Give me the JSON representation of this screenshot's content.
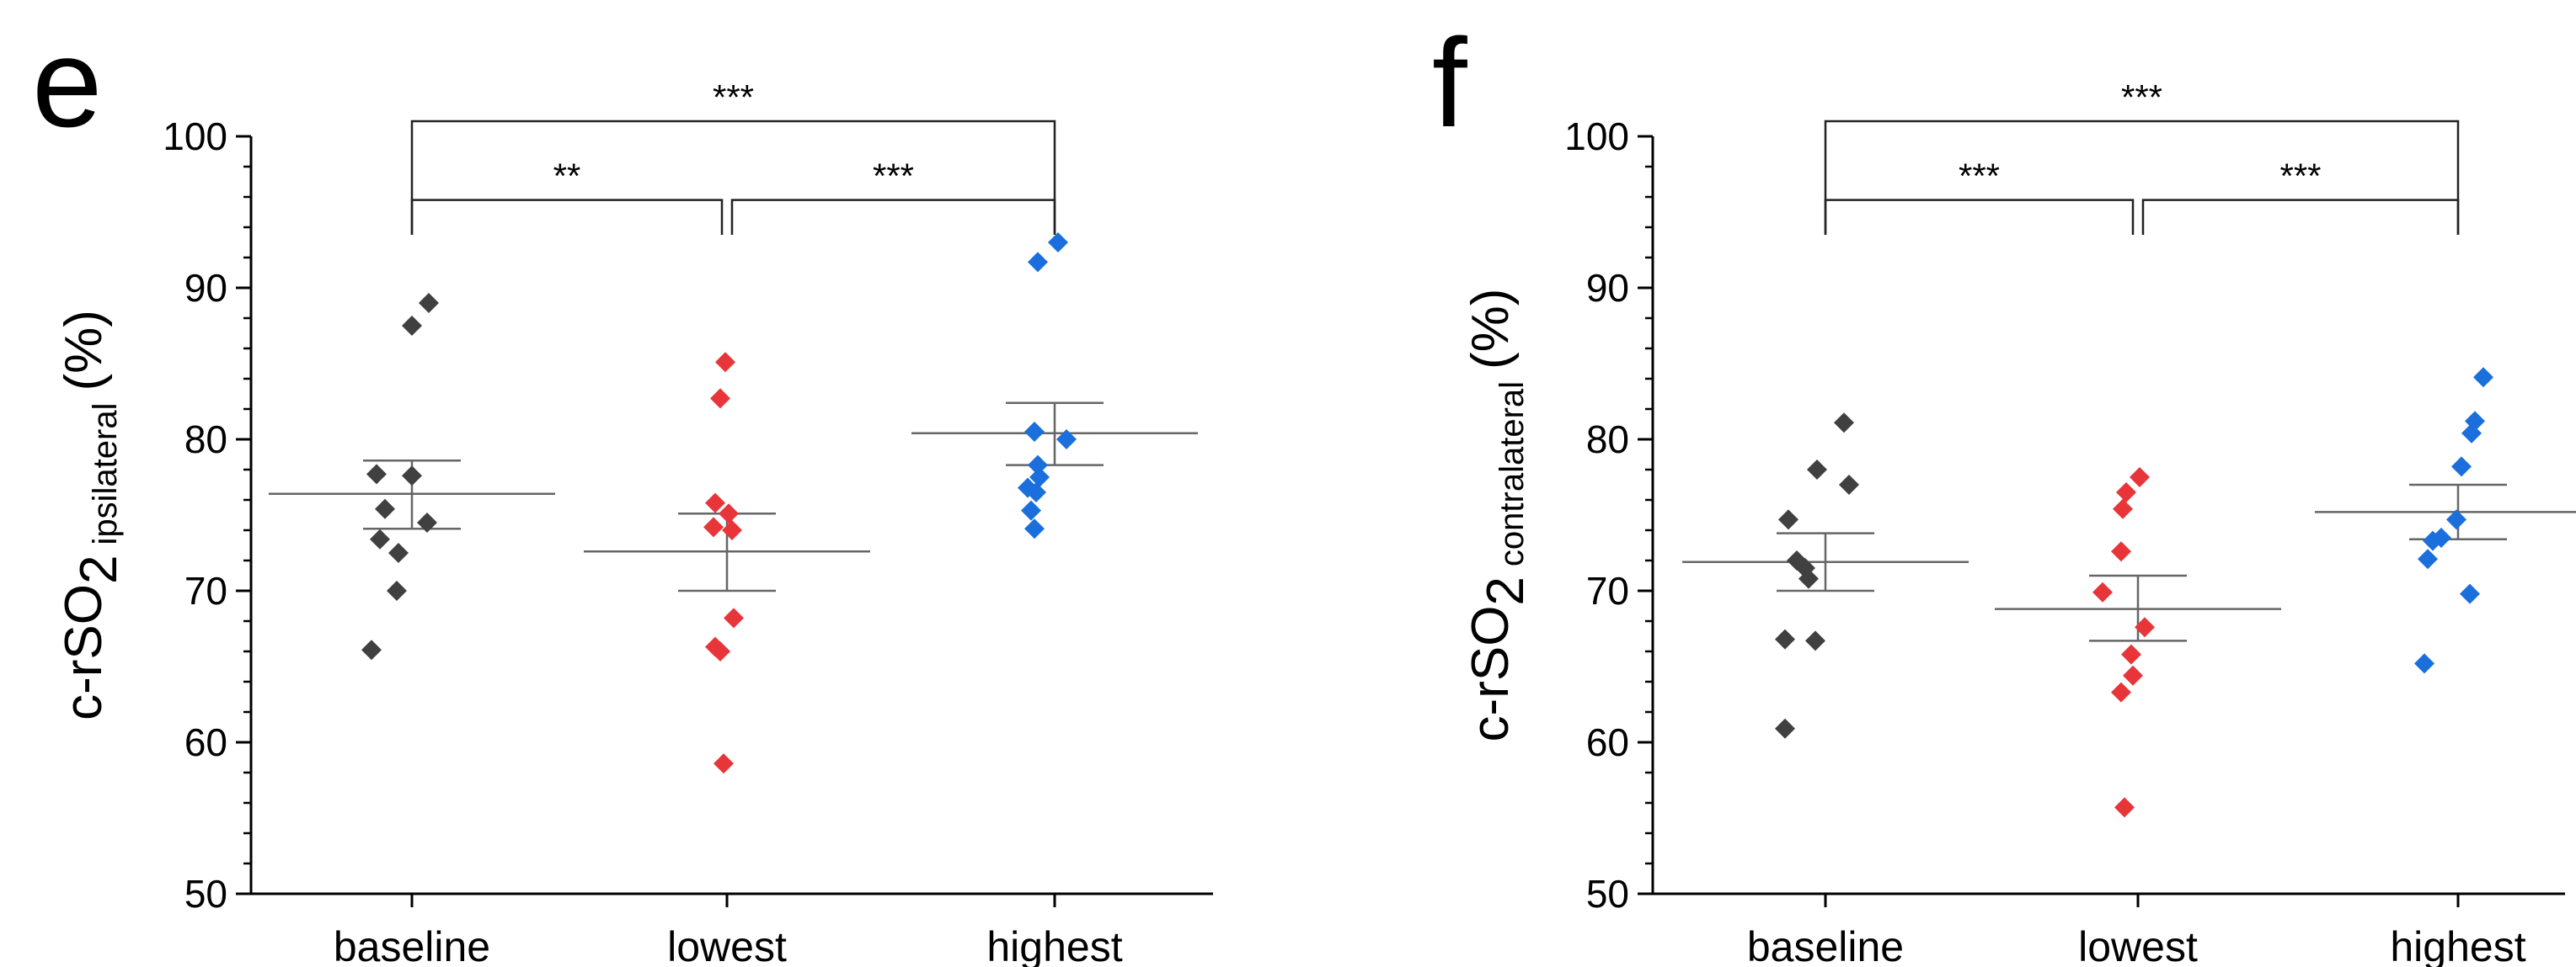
{
  "chart_data": [
    {
      "type": "scatter",
      "panel_label": "e",
      "categories": [
        "baseline",
        "lowest",
        "highest"
      ],
      "ylabel": {
        "main": "c-rSO",
        "subscript": "2",
        "qualifier": "ipsilateral",
        "unit": "(%)"
      },
      "ylim": [
        50,
        100
      ],
      "yticks": [
        50,
        60,
        70,
        80,
        90,
        100
      ],
      "series": [
        {
          "name": "baseline",
          "color": "#404040",
          "values": [
            89.0,
            87.5,
            77.7,
            77.6,
            75.4,
            74.5,
            73.4,
            72.5,
            70.0,
            66.1
          ],
          "mean": 76.4,
          "sem_low": 74.1,
          "sem_high": 78.6
        },
        {
          "name": "lowest",
          "color": "#e8353a",
          "values": [
            85.1,
            82.7,
            75.8,
            75.1,
            74.2,
            74.0,
            68.2,
            66.3,
            66.0,
            58.6
          ],
          "mean": 72.6,
          "sem_low": 70.0,
          "sem_high": 75.1
        },
        {
          "name": "highest",
          "color": "#1a6fdc",
          "values": [
            93.0,
            91.7,
            80.5,
            80.0,
            78.3,
            77.5,
            76.8,
            76.5,
            75.3,
            74.1
          ],
          "mean": 80.4,
          "sem_low": 78.3,
          "sem_high": 82.4
        }
      ],
      "significance": [
        {
          "from": "baseline",
          "to": "lowest",
          "label": "**"
        },
        {
          "from": "lowest",
          "to": "highest",
          "label": "***"
        },
        {
          "from": "baseline",
          "to": "highest",
          "label": "***"
        }
      ]
    },
    {
      "type": "scatter",
      "panel_label": "f",
      "categories": [
        "baseline",
        "lowest",
        "highest"
      ],
      "ylabel": {
        "main": "c-rSO",
        "subscript": "2",
        "qualifier": "contralateral",
        "unit": "(%)"
      },
      "ylim": [
        50,
        100
      ],
      "yticks": [
        50,
        60,
        70,
        80,
        90,
        100
      ],
      "series": [
        {
          "name": "baseline",
          "color": "#404040",
          "values": [
            81.1,
            78.0,
            77.0,
            74.7,
            72.0,
            71.5,
            70.8,
            66.8,
            66.7,
            60.9
          ],
          "mean": 71.9,
          "sem_low": 70.0,
          "sem_high": 73.8
        },
        {
          "name": "lowest",
          "color": "#e8353a",
          "values": [
            77.5,
            76.5,
            75.4,
            72.6,
            69.9,
            67.6,
            65.8,
            64.4,
            63.3,
            55.7
          ],
          "mean": 68.8,
          "sem_low": 66.7,
          "sem_high": 71.0
        },
        {
          "name": "highest",
          "color": "#1a6fdc",
          "values": [
            84.1,
            81.2,
            80.4,
            78.2,
            74.7,
            73.5,
            73.3,
            72.1,
            69.8,
            65.2
          ],
          "mean": 75.2,
          "sem_low": 73.4,
          "sem_high": 77.0
        }
      ],
      "significance": [
        {
          "from": "baseline",
          "to": "lowest",
          "label": "***"
        },
        {
          "from": "lowest",
          "to": "highest",
          "label": "***"
        },
        {
          "from": "baseline",
          "to": "highest",
          "label": "***"
        }
      ]
    }
  ]
}
